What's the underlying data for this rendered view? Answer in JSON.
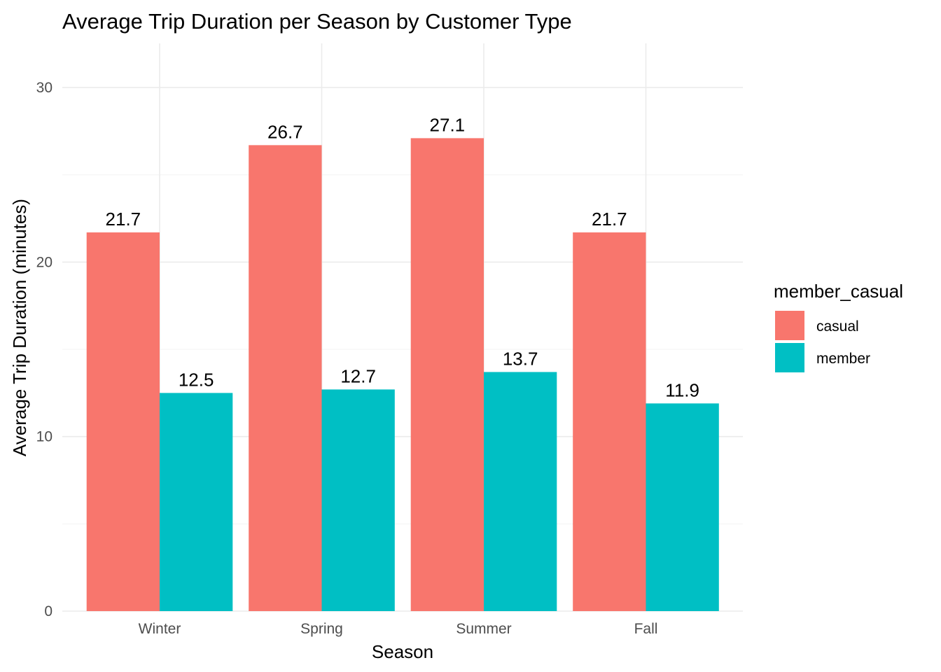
{
  "chart_data": {
    "type": "bar",
    "title": "Average Trip Duration per Season by Customer Type",
    "xlabel": "Season",
    "ylabel": "Average Trip Duration (minutes)",
    "categories": [
      "Winter",
      "Spring",
      "Summer",
      "Fall"
    ],
    "series": [
      {
        "name": "casual",
        "color": "#F8766D",
        "values": [
          21.7,
          26.7,
          27.1,
          21.7
        ]
      },
      {
        "name": "member",
        "color": "#00BFC4",
        "values": [
          12.5,
          12.7,
          13.7,
          11.9
        ]
      }
    ],
    "data_labels": [
      [
        "21.7",
        "26.7",
        "27.1",
        "21.7"
      ],
      [
        "12.5",
        "12.7",
        "13.7",
        "11.9"
      ]
    ],
    "ylim": [
      0,
      32.5
    ],
    "yticks": [
      0,
      10,
      20,
      30
    ],
    "grid": true,
    "legend": {
      "title": "member_casual",
      "position": "right"
    }
  }
}
